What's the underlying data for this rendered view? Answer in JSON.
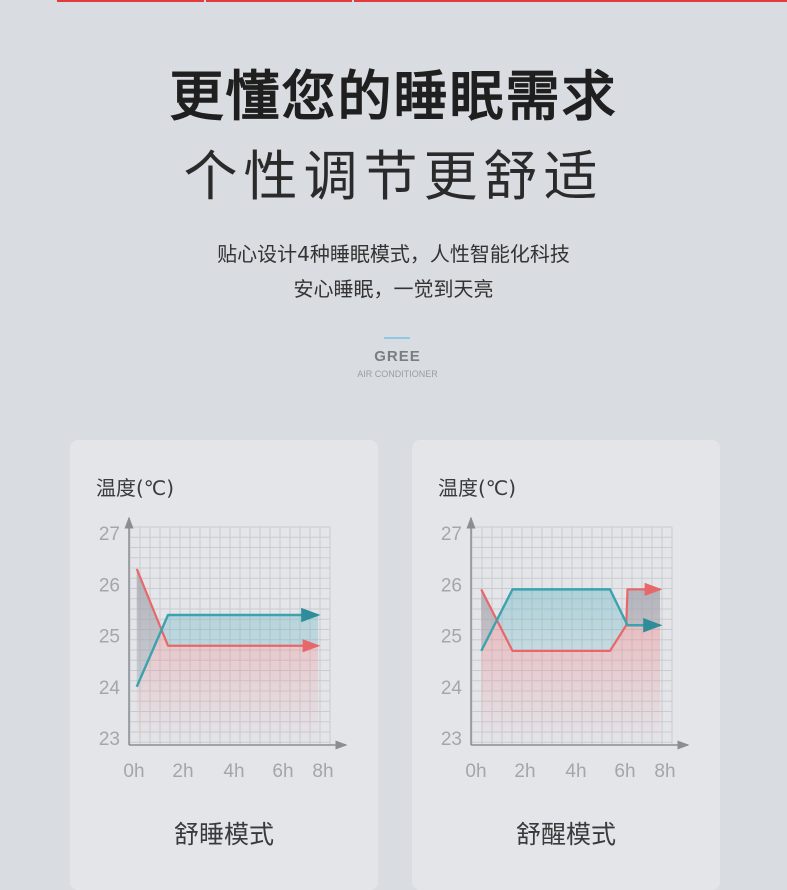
{
  "headline": "更懂您的睡眠需求",
  "subheadline": "个性调节更舒适",
  "description": [
    "贴心设计4种睡眠模式，人性智能化科技",
    "安心睡眠，一觉到天亮"
  ],
  "brand": {
    "name": "GREE",
    "tagline": "AIR CONDITIONER"
  },
  "colors": {
    "accent_red": "#e8676a",
    "accent_teal": "#3aa3ad",
    "top_bar": "#e23b3f",
    "background": "#d9dce1",
    "card": "#e3e5e9"
  },
  "chart_data": [
    {
      "type": "line",
      "title": "舒睡模式",
      "ylabel": "温度(℃)",
      "yticks": [
        "27",
        "26",
        "25",
        "24",
        "23"
      ],
      "xticks": [
        "0h",
        "2h",
        "4h",
        "6h",
        "8h"
      ],
      "ylim": [
        23,
        27
      ],
      "xlim": [
        0,
        8
      ],
      "grid": true,
      "series": [
        {
          "color": "#e8676a",
          "points": [
            [
              0.15,
              26.3
            ],
            [
              1.4,
              24.8
            ],
            [
              7.4,
              24.8
            ]
          ]
        },
        {
          "color": "#3aa3ad",
          "points": [
            [
              0.15,
              24.0
            ],
            [
              1.4,
              25.4
            ],
            [
              7.4,
              25.4
            ]
          ]
        }
      ]
    },
    {
      "type": "line",
      "title": "舒醒模式",
      "ylabel": "温度(℃)",
      "yticks": [
        "27",
        "26",
        "25",
        "24",
        "23"
      ],
      "xticks": [
        "0h",
        "2h",
        "4h",
        "6h",
        "8h"
      ],
      "ylim": [
        23,
        27
      ],
      "xlim": [
        0,
        8
      ],
      "grid": true,
      "series": [
        {
          "color": "#e8676a",
          "points": [
            [
              0.25,
              25.9
            ],
            [
              1.5,
              24.7
            ],
            [
              5.4,
              24.7
            ],
            [
              6.05,
              25.2
            ],
            [
              6.1,
              25.9
            ],
            [
              7.4,
              25.9
            ]
          ]
        },
        {
          "color": "#3aa3ad",
          "points": [
            [
              0.25,
              24.7
            ],
            [
              1.5,
              25.9
            ],
            [
              5.4,
              25.9
            ],
            [
              6.1,
              25.2
            ],
            [
              7.4,
              25.2
            ]
          ]
        }
      ]
    }
  ]
}
